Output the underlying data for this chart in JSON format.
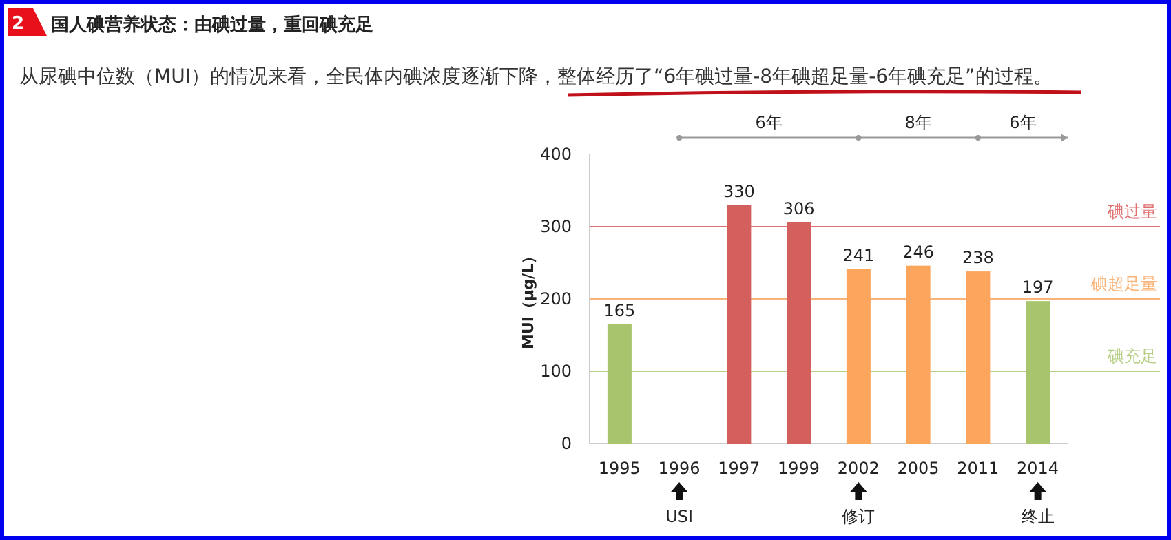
{
  "chart_data": {
    "type": "bar",
    "title": "国人碘营养状态：由碘过量，重回碘充足",
    "subtitle": "从尿碘中位数（MUI）的情况来看，全民体内碘浓度逐渐下降，整体经历了“6年碘过量-8年碘超足量-6年碘充足”的过程。",
    "ylabel": "MUI（μg/L）",
    "categories": [
      "1995",
      "1996",
      "1997",
      "1999",
      "2002",
      "2005",
      "2011",
      "2014"
    ],
    "values": [
      165,
      null,
      330,
      306,
      241,
      246,
      238,
      197
    ],
    "colors": [
      "#a8c46c",
      "#a8c46c",
      "#d4605e",
      "#d4605e",
      "#fba65c",
      "#fba65c",
      "#fba65c",
      "#a8c46c"
    ],
    "data_labels": true,
    "ylim": [
      0,
      400
    ],
    "yticks": [
      0,
      100,
      200,
      300,
      400
    ],
    "ref_lines": [
      {
        "axis": "y",
        "value": 300,
        "label": "碘过量",
        "color": "#e07070"
      },
      {
        "axis": "y",
        "value": 200,
        "label": "碘超足量",
        "color": "#fbb478"
      },
      {
        "axis": "y",
        "value": 100,
        "label": "碘充足",
        "color": "#b5cf85"
      }
    ],
    "annotations": [
      "2",
      "6年",
      "8年",
      "6年",
      "USI",
      "修订",
      "终止"
    ]
  }
}
